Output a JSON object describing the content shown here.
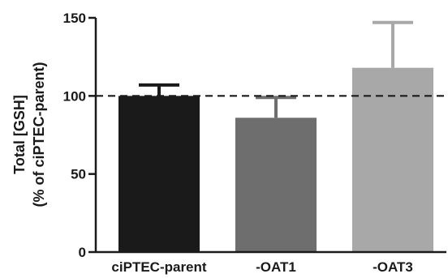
{
  "chart_data": {
    "type": "bar",
    "categories": [
      "ciPTEC-parent",
      "-OAT1",
      "-OAT3"
    ],
    "values": [
      100,
      86,
      118
    ],
    "errors": [
      7,
      13,
      29
    ],
    "colors": [
      "#1a1a1a",
      "#6e6e6e",
      "#a8a8a8"
    ],
    "error_colors": [
      "#1a1a1a",
      "#6e6e6e",
      "#a8a8a8"
    ],
    "title": "",
    "xlabel": "",
    "ylabel": "Total [GSH]",
    "ylabel_line2": "(% of ciPTEC-parent)",
    "ylim": [
      0,
      150
    ],
    "yticks": [
      0,
      50,
      100,
      150
    ],
    "reference_line": {
      "value": 100,
      "style": "dashed",
      "color": "#1a1a1a"
    },
    "grid": false,
    "legend": "none"
  }
}
